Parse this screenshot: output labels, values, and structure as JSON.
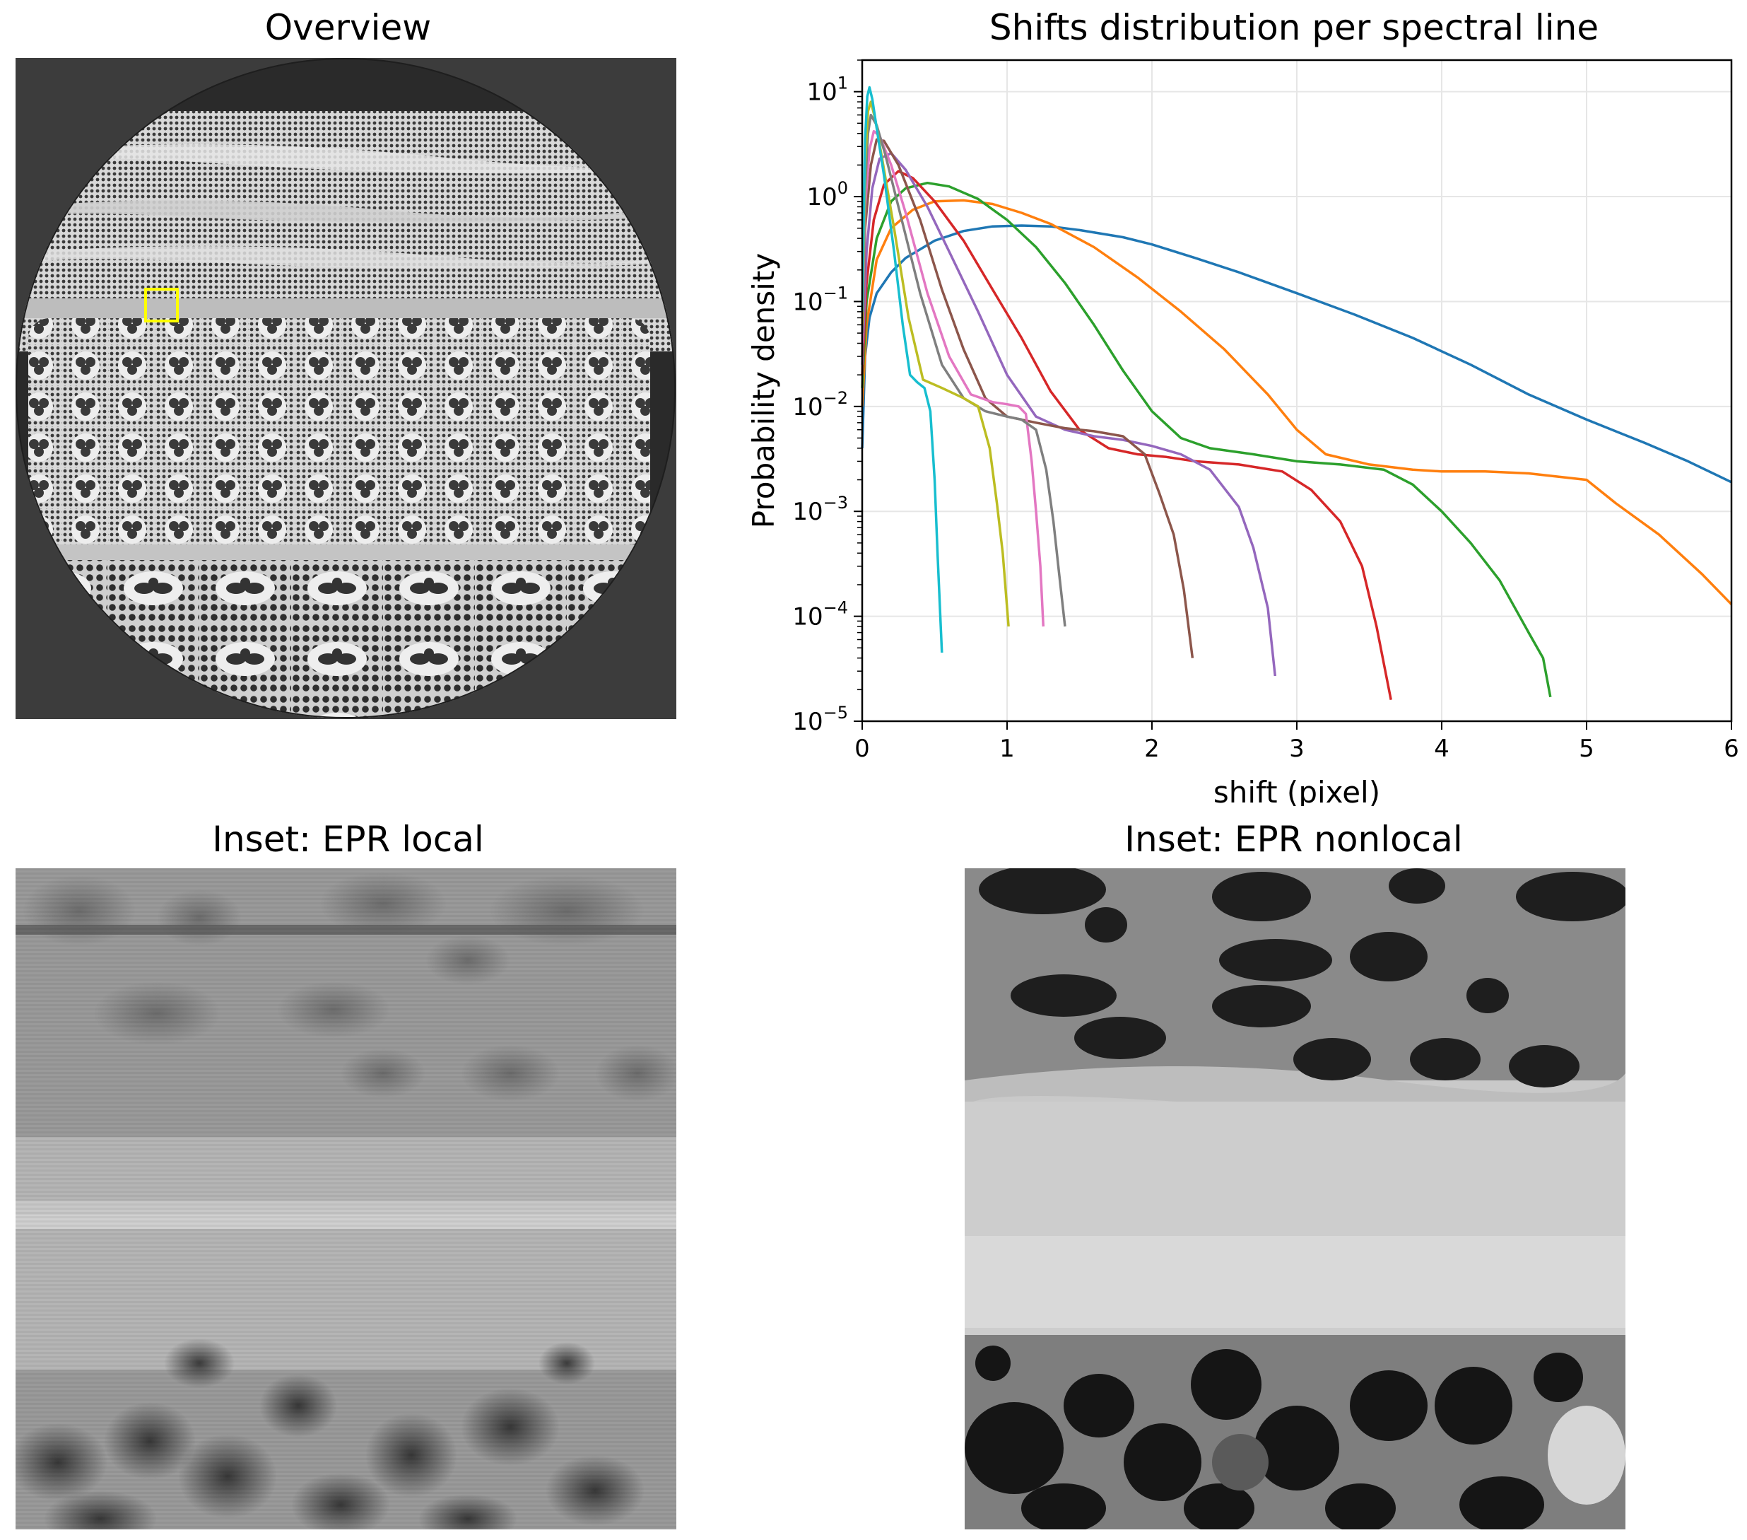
{
  "panels": {
    "overview": {
      "title": "Overview"
    },
    "inset_local": {
      "title": "Inset: EPR local"
    },
    "inset_nonlocal": {
      "title": "Inset: EPR nonlocal"
    }
  },
  "colors": {
    "highlight_box": "#ffff00",
    "image_background": "#3c3c3c"
  },
  "chart_data": {
    "type": "line",
    "title": "Shifts distribution per spectral line",
    "xlabel": "shift (pixel)",
    "ylabel": "Probability density",
    "xlim": [
      0,
      6
    ],
    "ylim": [
      1e-05,
      20
    ],
    "yscale": "log",
    "grid": true,
    "legend": "none",
    "x_ticks": [
      "0",
      "1",
      "2",
      "3",
      "4",
      "5",
      "6"
    ],
    "y_ticks": [
      {
        "base": "10",
        "exp": "1"
      },
      {
        "base": "10",
        "exp": "0"
      },
      {
        "base": "10",
        "exp": "−1"
      },
      {
        "base": "10",
        "exp": "−2"
      },
      {
        "base": "10",
        "exp": "−3"
      },
      {
        "base": "10",
        "exp": "−4"
      },
      {
        "base": "10",
        "exp": "−5"
      }
    ],
    "series": [
      {
        "color": "#1f77b4",
        "points": [
          [
            0,
            0.004
          ],
          [
            0.02,
            0.03
          ],
          [
            0.05,
            0.07
          ],
          [
            0.1,
            0.12
          ],
          [
            0.2,
            0.19
          ],
          [
            0.3,
            0.26
          ],
          [
            0.5,
            0.38
          ],
          [
            0.7,
            0.47
          ],
          [
            0.9,
            0.52
          ],
          [
            1.1,
            0.53
          ],
          [
            1.3,
            0.52
          ],
          [
            1.5,
            0.48
          ],
          [
            1.8,
            0.41
          ],
          [
            2.0,
            0.35
          ],
          [
            2.3,
            0.26
          ],
          [
            2.6,
            0.19
          ],
          [
            3.0,
            0.12
          ],
          [
            3.4,
            0.075
          ],
          [
            3.8,
            0.045
          ],
          [
            4.2,
            0.025
          ],
          [
            4.6,
            0.013
          ],
          [
            5.0,
            0.0075
          ],
          [
            5.4,
            0.0045
          ],
          [
            5.7,
            0.003
          ],
          [
            6.0,
            0.0019
          ]
        ]
      },
      {
        "color": "#ff7f0e",
        "points": [
          [
            0,
            0.01
          ],
          [
            0.03,
            0.06
          ],
          [
            0.1,
            0.25
          ],
          [
            0.2,
            0.5
          ],
          [
            0.35,
            0.75
          ],
          [
            0.5,
            0.9
          ],
          [
            0.7,
            0.92
          ],
          [
            0.9,
            0.85
          ],
          [
            1.1,
            0.7
          ],
          [
            1.3,
            0.55
          ],
          [
            1.6,
            0.33
          ],
          [
            1.9,
            0.17
          ],
          [
            2.2,
            0.08
          ],
          [
            2.5,
            0.035
          ],
          [
            2.8,
            0.013
          ],
          [
            3.0,
            0.006
          ],
          [
            3.2,
            0.0035
          ],
          [
            3.5,
            0.0028
          ],
          [
            3.8,
            0.0025
          ],
          [
            4.0,
            0.0024
          ],
          [
            4.3,
            0.0024
          ],
          [
            4.6,
            0.0023
          ],
          [
            5.0,
            0.002
          ],
          [
            5.2,
            0.0012
          ],
          [
            5.5,
            0.0006
          ],
          [
            5.8,
            0.00025
          ],
          [
            6.0,
            0.00013
          ]
        ]
      },
      {
        "color": "#2ca02c",
        "points": [
          [
            0,
            0.015
          ],
          [
            0.03,
            0.1
          ],
          [
            0.1,
            0.4
          ],
          [
            0.2,
            0.9
          ],
          [
            0.3,
            1.2
          ],
          [
            0.45,
            1.35
          ],
          [
            0.6,
            1.25
          ],
          [
            0.8,
            0.95
          ],
          [
            1.0,
            0.6
          ],
          [
            1.2,
            0.33
          ],
          [
            1.4,
            0.15
          ],
          [
            1.6,
            0.06
          ],
          [
            1.8,
            0.022
          ],
          [
            2.0,
            0.009
          ],
          [
            2.2,
            0.005
          ],
          [
            2.4,
            0.004
          ],
          [
            2.7,
            0.0035
          ],
          [
            3.0,
            0.003
          ],
          [
            3.3,
            0.0028
          ],
          [
            3.6,
            0.0025
          ],
          [
            3.8,
            0.0018
          ],
          [
            4.0,
            0.001
          ],
          [
            4.2,
            0.0005
          ],
          [
            4.4,
            0.00022
          ],
          [
            4.6,
            7e-05
          ],
          [
            4.7,
            4e-05
          ],
          [
            4.75,
            1.7e-05
          ]
        ]
      },
      {
        "color": "#d62728",
        "points": [
          [
            0,
            0.02
          ],
          [
            0.03,
            0.15
          ],
          [
            0.08,
            0.6
          ],
          [
            0.15,
            1.3
          ],
          [
            0.25,
            1.75
          ],
          [
            0.35,
            1.5
          ],
          [
            0.5,
            0.9
          ],
          [
            0.7,
            0.38
          ],
          [
            0.9,
            0.13
          ],
          [
            1.1,
            0.045
          ],
          [
            1.3,
            0.014
          ],
          [
            1.5,
            0.006
          ],
          [
            1.7,
            0.004
          ],
          [
            1.9,
            0.0035
          ],
          [
            2.1,
            0.0033
          ],
          [
            2.3,
            0.003
          ],
          [
            2.6,
            0.0028
          ],
          [
            2.9,
            0.0024
          ],
          [
            3.1,
            0.0016
          ],
          [
            3.3,
            0.0008
          ],
          [
            3.45,
            0.0003
          ],
          [
            3.55,
            8e-05
          ],
          [
            3.65,
            1.6e-05
          ]
        ]
      },
      {
        "color": "#9467bd",
        "points": [
          [
            0,
            0.025
          ],
          [
            0.03,
            0.3
          ],
          [
            0.07,
            1.2
          ],
          [
            0.12,
            2.3
          ],
          [
            0.2,
            2.6
          ],
          [
            0.3,
            1.8
          ],
          [
            0.45,
            0.8
          ],
          [
            0.6,
            0.3
          ],
          [
            0.8,
            0.08
          ],
          [
            1.0,
            0.02
          ],
          [
            1.2,
            0.008
          ],
          [
            1.4,
            0.006
          ],
          [
            1.6,
            0.0052
          ],
          [
            1.8,
            0.0048
          ],
          [
            2.0,
            0.0042
          ],
          [
            2.2,
            0.0035
          ],
          [
            2.4,
            0.0025
          ],
          [
            2.6,
            0.0011
          ],
          [
            2.7,
            0.00045
          ],
          [
            2.8,
            0.00012
          ],
          [
            2.85,
            2.7e-05
          ]
        ]
      },
      {
        "color": "#8c564b",
        "points": [
          [
            0,
            0.03
          ],
          [
            0.02,
            0.5
          ],
          [
            0.06,
            2.0
          ],
          [
            0.1,
            3.5
          ],
          [
            0.15,
            3.4
          ],
          [
            0.25,
            2.0
          ],
          [
            0.4,
            0.6
          ],
          [
            0.55,
            0.13
          ],
          [
            0.7,
            0.035
          ],
          [
            0.85,
            0.012
          ],
          [
            1.0,
            0.008
          ],
          [
            1.2,
            0.007
          ],
          [
            1.4,
            0.0062
          ],
          [
            1.6,
            0.0058
          ],
          [
            1.8,
            0.0052
          ],
          [
            1.95,
            0.0035
          ],
          [
            2.05,
            0.0015
          ],
          [
            2.15,
            0.0006
          ],
          [
            2.22,
            0.00018
          ],
          [
            2.28,
            4e-05
          ]
        ]
      },
      {
        "color": "#e377c2",
        "points": [
          [
            0,
            0.04
          ],
          [
            0.02,
            0.8
          ],
          [
            0.05,
            2.8
          ],
          [
            0.08,
            4.2
          ],
          [
            0.12,
            3.8
          ],
          [
            0.2,
            2.0
          ],
          [
            0.3,
            0.7
          ],
          [
            0.45,
            0.12
          ],
          [
            0.6,
            0.03
          ],
          [
            0.75,
            0.013
          ],
          [
            0.9,
            0.011
          ],
          [
            1.0,
            0.0105
          ],
          [
            1.08,
            0.01
          ],
          [
            1.13,
            0.0085
          ],
          [
            1.17,
            0.003
          ],
          [
            1.2,
            0.001
          ],
          [
            1.23,
            0.0003
          ],
          [
            1.25,
            8e-05
          ]
        ]
      },
      {
        "color": "#7f7f7f",
        "points": [
          [
            0,
            0.05
          ],
          [
            0.02,
            1.2
          ],
          [
            0.04,
            4.0
          ],
          [
            0.06,
            6.0
          ],
          [
            0.1,
            4.8
          ],
          [
            0.16,
            2.5
          ],
          [
            0.25,
            0.8
          ],
          [
            0.4,
            0.12
          ],
          [
            0.55,
            0.025
          ],
          [
            0.7,
            0.012
          ],
          [
            0.85,
            0.009
          ],
          [
            1.0,
            0.008
          ],
          [
            1.1,
            0.0075
          ],
          [
            1.2,
            0.006
          ],
          [
            1.27,
            0.0025
          ],
          [
            1.32,
            0.0008
          ],
          [
            1.36,
            0.00025
          ],
          [
            1.4,
            8e-05
          ]
        ]
      },
      {
        "color": "#bcbd22",
        "points": [
          [
            0,
            0.06
          ],
          [
            0.02,
            2.0
          ],
          [
            0.04,
            6.5
          ],
          [
            0.06,
            8.0
          ],
          [
            0.09,
            5.5
          ],
          [
            0.14,
            2.2
          ],
          [
            0.22,
            0.5
          ],
          [
            0.32,
            0.07
          ],
          [
            0.42,
            0.018
          ],
          [
            0.55,
            0.015
          ],
          [
            0.7,
            0.012
          ],
          [
            0.8,
            0.01
          ],
          [
            0.88,
            0.004
          ],
          [
            0.93,
            0.0012
          ],
          [
            0.97,
            0.0004
          ],
          [
            1.01,
            8e-05
          ]
        ]
      },
      {
        "color": "#17becf",
        "points": [
          [
            0,
            0.08
          ],
          [
            0.02,
            3.5
          ],
          [
            0.035,
            9.0
          ],
          [
            0.05,
            11.0
          ],
          [
            0.07,
            8.5
          ],
          [
            0.1,
            4.5
          ],
          [
            0.15,
            1.6
          ],
          [
            0.22,
            0.3
          ],
          [
            0.28,
            0.06
          ],
          [
            0.33,
            0.02
          ],
          [
            0.38,
            0.017
          ],
          [
            0.43,
            0.015
          ],
          [
            0.47,
            0.009
          ],
          [
            0.5,
            0.002
          ],
          [
            0.52,
            0.0004
          ],
          [
            0.55,
            4.5e-05
          ]
        ]
      }
    ]
  }
}
